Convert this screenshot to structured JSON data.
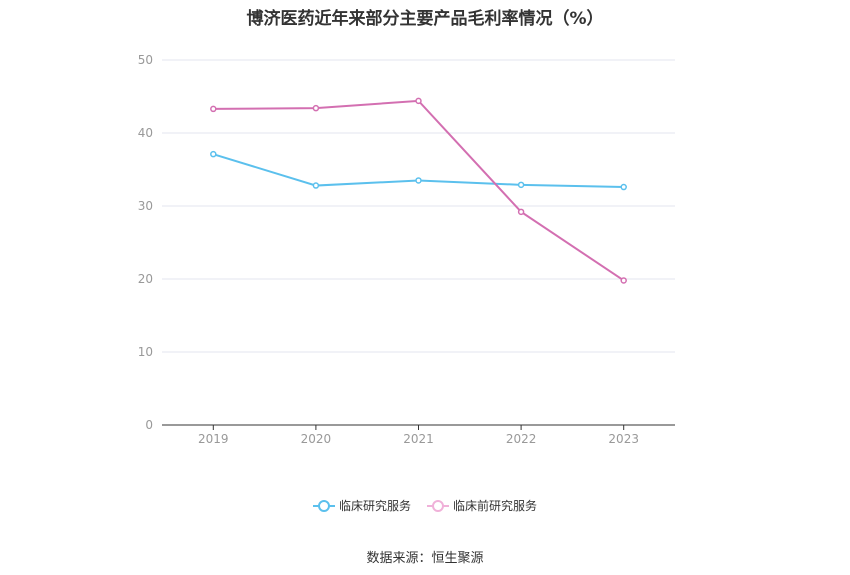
{
  "chart_data": {
    "type": "line",
    "title": "博济医药近年来部分主要产品毛利率情况（%）",
    "xlabel": "",
    "ylabel": "",
    "categories": [
      "2019",
      "2020",
      "2021",
      "2022",
      "2023"
    ],
    "ylim": [
      0,
      50
    ],
    "yticks": [
      0,
      10,
      20,
      30,
      40,
      50
    ],
    "grid": true,
    "legend_position": "bottom",
    "series": [
      {
        "name": "临床研究服务",
        "color": "#5bc0ed",
        "values": [
          37.1,
          32.8,
          33.5,
          32.9,
          32.6
        ]
      },
      {
        "name": "临床前研究服务",
        "color": "#d36fb1",
        "values": [
          43.3,
          43.4,
          44.4,
          29.2,
          19.8
        ]
      }
    ]
  },
  "footer": {
    "source": "数据来源：恒生聚源"
  }
}
